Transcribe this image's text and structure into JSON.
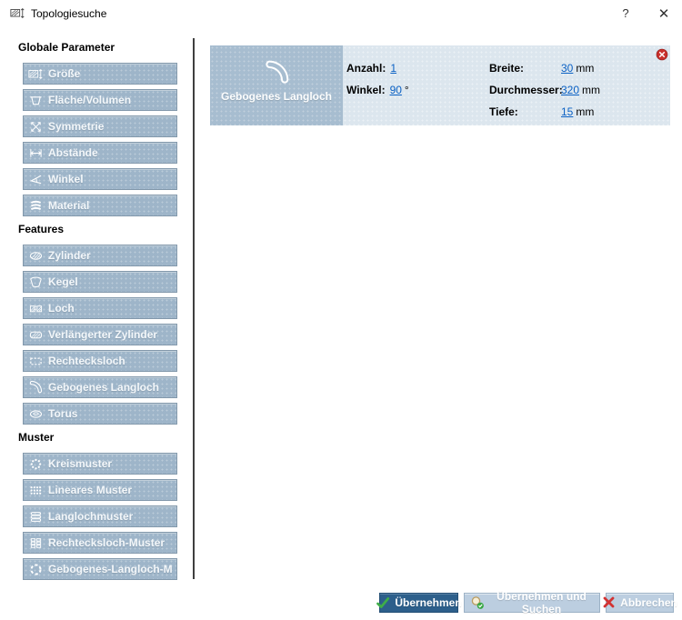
{
  "window": {
    "title": "Topologiesuche",
    "help_label": "?",
    "close_label": "✕"
  },
  "sidebar": {
    "sections": [
      {
        "title": "Globale Parameter",
        "items": [
          {
            "label": "Größe",
            "icon": "size-icon"
          },
          {
            "label": "Fläche/Volumen",
            "icon": "area-volume-icon"
          },
          {
            "label": "Symmetrie",
            "icon": "symmetry-icon"
          },
          {
            "label": "Abstände",
            "icon": "distance-icon"
          },
          {
            "label": "Winkel",
            "icon": "angle-icon"
          },
          {
            "label": "Material",
            "icon": "material-icon"
          }
        ]
      },
      {
        "title": "Features",
        "items": [
          {
            "label": "Zylinder",
            "icon": "cylinder-icon"
          },
          {
            "label": "Kegel",
            "icon": "cone-icon"
          },
          {
            "label": "Loch",
            "icon": "hole-icon"
          },
          {
            "label": "Verlängerter Zylinder",
            "icon": "extended-cylinder-icon"
          },
          {
            "label": "Rechtecksloch",
            "icon": "rect-hole-icon"
          },
          {
            "label": "Gebogenes Langloch",
            "icon": "curved-slot-icon"
          },
          {
            "label": "Torus",
            "icon": "torus-icon"
          }
        ]
      },
      {
        "title": "Muster",
        "items": [
          {
            "label": "Kreismuster",
            "icon": "circular-pattern-icon"
          },
          {
            "label": "Lineares Muster",
            "icon": "linear-pattern-icon"
          },
          {
            "label": "Langlochmuster",
            "icon": "slot-pattern-icon"
          },
          {
            "label": "Rechtecksloch-Muster",
            "icon": "rect-hole-pattern-icon"
          },
          {
            "label": "Gebogenes-Langloch-Muster",
            "icon": "curved-slot-pattern-icon"
          }
        ]
      }
    ]
  },
  "card": {
    "tile_label": "Gebogenes Langloch",
    "tile_icon": "curved-slot-icon",
    "delete_icon": "delete-icon",
    "fields_left": [
      {
        "label": "Anzahl:",
        "value": "1",
        "unit": ""
      },
      {
        "label": "Winkel:",
        "value": "90",
        "unit": "°"
      }
    ],
    "fields_right": [
      {
        "label": "Breite:",
        "value": "30",
        "unit": "mm"
      },
      {
        "label": "Durchmesser:",
        "value": "320",
        "unit": "mm"
      },
      {
        "label": "Tiefe:",
        "value": "15",
        "unit": "mm"
      }
    ]
  },
  "footer": {
    "apply_label": "Übernehmen",
    "apply_search_label": "Übernehmen und Suchen",
    "cancel_label": "Abbrechen",
    "apply_icon": "check-icon",
    "apply_search_icon": "search-check-icon",
    "cancel_icon": "cancel-x-icon"
  },
  "colors": {
    "sidebar_button_bg": "#9eb5c9",
    "tile_bg": "#a7bdd0",
    "card_body_bg": "#dce6ee",
    "primary_button_bg": "#2d5f8b",
    "secondary_button_bg": "#bccee0",
    "link_blue": "#0b61c4",
    "delete_red": "#c9302c",
    "check_green": "#3fae49",
    "cancel_red": "#d23333",
    "divider": "#3f3f3f"
  }
}
